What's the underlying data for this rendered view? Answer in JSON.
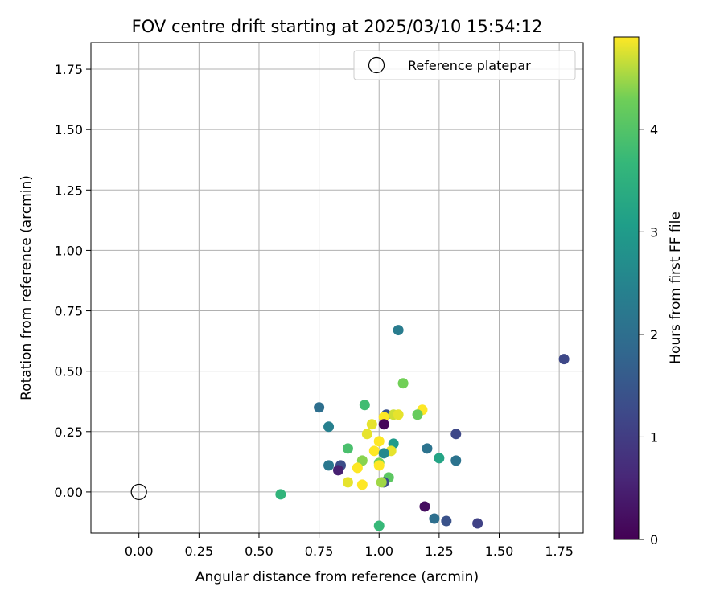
{
  "chart_data": {
    "type": "scatter",
    "title": "FOV centre drift starting at 2025/03/10 15:54:12",
    "xlabel": "Angular distance from reference (arcmin)",
    "ylabel": "Rotation from reference (arcmin)",
    "xlim": [
      -0.2,
      1.85
    ],
    "ylim": [
      -0.17,
      1.86
    ],
    "xticks": [
      "0.00",
      "0.25",
      "0.50",
      "0.75",
      "1.00",
      "1.25",
      "1.50",
      "1.75"
    ],
    "yticks": [
      "0.00",
      "0.25",
      "0.50",
      "0.75",
      "1.00",
      "1.25",
      "1.50",
      "1.75"
    ],
    "grid": true,
    "legend": {
      "position": "top-right",
      "entries": [
        "Reference platepar"
      ]
    },
    "reference_point": {
      "x": 0.0,
      "y": 0.0
    },
    "colorbar": {
      "label": "Hours from first FF file",
      "range": [
        0,
        4.9
      ],
      "ticks": [
        "0",
        "1",
        "2",
        "3",
        "4"
      ],
      "colormap": "viridis"
    },
    "points": [
      {
        "x": 1.77,
        "y": 0.55,
        "h": 1.2
      },
      {
        "x": 1.08,
        "y": 0.67,
        "h": 2.3
      },
      {
        "x": 1.1,
        "y": 0.45,
        "h": 4.3
      },
      {
        "x": 0.75,
        "y": 0.35,
        "h": 2.0
      },
      {
        "x": 0.94,
        "y": 0.36,
        "h": 3.8
      },
      {
        "x": 1.18,
        "y": 0.34,
        "h": 4.9
      },
      {
        "x": 1.16,
        "y": 0.32,
        "h": 4.2
      },
      {
        "x": 1.03,
        "y": 0.32,
        "h": 1.4
      },
      {
        "x": 1.06,
        "y": 0.32,
        "h": 4.7
      },
      {
        "x": 1.08,
        "y": 0.32,
        "h": 4.8
      },
      {
        "x": 1.02,
        "y": 0.31,
        "h": 4.9
      },
      {
        "x": 0.97,
        "y": 0.28,
        "h": 4.8
      },
      {
        "x": 1.02,
        "y": 0.28,
        "h": 0.1
      },
      {
        "x": 0.79,
        "y": 0.27,
        "h": 2.4
      },
      {
        "x": 1.32,
        "y": 0.24,
        "h": 1.2
      },
      {
        "x": 0.95,
        "y": 0.24,
        "h": 4.8
      },
      {
        "x": 1.0,
        "y": 0.21,
        "h": 4.9
      },
      {
        "x": 1.06,
        "y": 0.2,
        "h": 3.0
      },
      {
        "x": 0.87,
        "y": 0.18,
        "h": 3.9
      },
      {
        "x": 1.2,
        "y": 0.18,
        "h": 2.1
      },
      {
        "x": 1.05,
        "y": 0.17,
        "h": 4.8
      },
      {
        "x": 0.98,
        "y": 0.17,
        "h": 4.9
      },
      {
        "x": 1.02,
        "y": 0.16,
        "h": 2.6
      },
      {
        "x": 1.25,
        "y": 0.14,
        "h": 3.2
      },
      {
        "x": 1.32,
        "y": 0.13,
        "h": 2.1
      },
      {
        "x": 0.93,
        "y": 0.13,
        "h": 4.4
      },
      {
        "x": 1.0,
        "y": 0.12,
        "h": 4.3
      },
      {
        "x": 0.79,
        "y": 0.11,
        "h": 2.2
      },
      {
        "x": 0.84,
        "y": 0.11,
        "h": 1.3
      },
      {
        "x": 1.0,
        "y": 0.11,
        "h": 4.9
      },
      {
        "x": 0.91,
        "y": 0.1,
        "h": 4.9
      },
      {
        "x": 0.83,
        "y": 0.09,
        "h": 0.5
      },
      {
        "x": 1.04,
        "y": 0.06,
        "h": 4.1
      },
      {
        "x": 1.02,
        "y": 0.04,
        "h": 1.3
      },
      {
        "x": 1.01,
        "y": 0.04,
        "h": 4.5
      },
      {
        "x": 0.87,
        "y": 0.04,
        "h": 4.8
      },
      {
        "x": 0.93,
        "y": 0.03,
        "h": 4.9
      },
      {
        "x": 0.59,
        "y": -0.01,
        "h": 3.6
      },
      {
        "x": 1.19,
        "y": -0.06,
        "h": 0.2
      },
      {
        "x": 1.23,
        "y": -0.11,
        "h": 2.0
      },
      {
        "x": 1.28,
        "y": -0.12,
        "h": 1.4
      },
      {
        "x": 1.41,
        "y": -0.13,
        "h": 1.1
      },
      {
        "x": 1.0,
        "y": -0.14,
        "h": 3.7
      }
    ]
  }
}
